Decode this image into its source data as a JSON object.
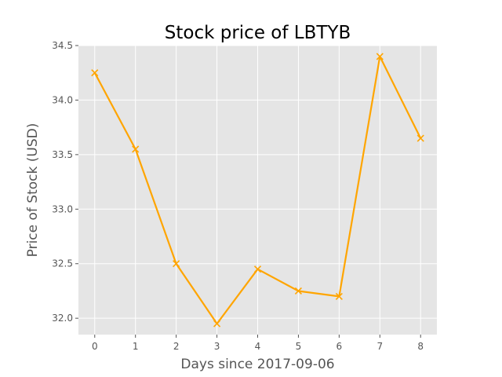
{
  "chart_data": {
    "type": "line",
    "title": "Stock price of LBTYB",
    "xlabel": "Days since 2017-09-06",
    "ylabel": "Price of Stock (USD)",
    "x": [
      0,
      1,
      2,
      3,
      4,
      5,
      6,
      7,
      8
    ],
    "series": [
      {
        "values": [
          34.25,
          33.55,
          32.5,
          31.95,
          32.45,
          32.25,
          32.2,
          34.4,
          33.65
        ],
        "color": "#ffa500",
        "marker": "x"
      }
    ],
    "xlim": [
      -0.4,
      8.4
    ],
    "ylim": [
      31.85,
      34.5
    ],
    "xticks": [
      "0",
      "1",
      "2",
      "3",
      "4",
      "5",
      "6",
      "7",
      "8"
    ],
    "yticks": [
      "32.0",
      "32.5",
      "33.0",
      "33.5",
      "34.0",
      "34.5"
    ],
    "grid": true,
    "style": {
      "plot_background": "#e5e5e5",
      "grid_color": "#ffffff",
      "line_color": "#ffa500"
    }
  }
}
